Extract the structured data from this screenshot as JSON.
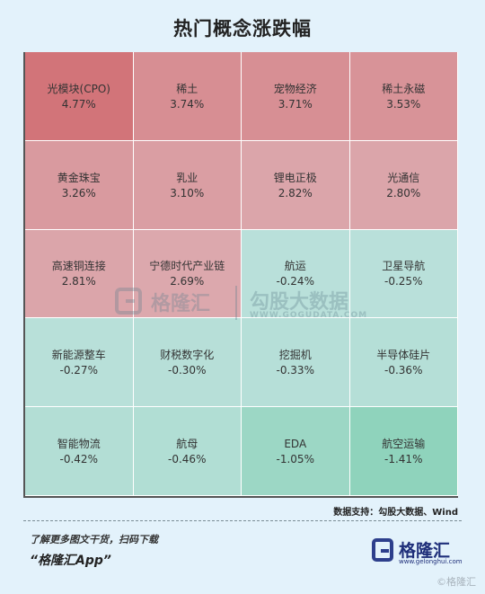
{
  "title": "热门概念涨跌幅",
  "chart_data": {
    "type": "heatmap",
    "title": "热门概念涨跌幅",
    "columns": 4,
    "rows": 5,
    "cells": [
      {
        "name": "光模块(CPO)",
        "value": 4.77,
        "label": "4.77%"
      },
      {
        "name": "稀土",
        "value": 3.74,
        "label": "3.74%"
      },
      {
        "name": "宠物经济",
        "value": 3.71,
        "label": "3.71%"
      },
      {
        "name": "稀土永磁",
        "value": 3.53,
        "label": "3.53%"
      },
      {
        "name": "黄金珠宝",
        "value": 3.26,
        "label": "3.26%"
      },
      {
        "name": "乳业",
        "value": 3.1,
        "label": "3.10%"
      },
      {
        "name": "锂电正极",
        "value": 2.82,
        "label": "2.82%"
      },
      {
        "name": "光通信",
        "value": 2.8,
        "label": "2.80%"
      },
      {
        "name": "高速铜连接",
        "value": 2.81,
        "label": "2.81%"
      },
      {
        "name": "宁德时代产业链",
        "value": 2.69,
        "label": "2.69%"
      },
      {
        "name": "航运",
        "value": -0.24,
        "label": "-0.24%"
      },
      {
        "name": "卫星导航",
        "value": -0.25,
        "label": "-0.25%"
      },
      {
        "name": "新能源整车",
        "value": -0.27,
        "label": "-0.27%"
      },
      {
        "name": "财税数字化",
        "value": -0.3,
        "label": "-0.30%"
      },
      {
        "name": "挖掘机",
        "value": -0.33,
        "label": "-0.33%"
      },
      {
        "name": "半导体硅片",
        "value": -0.36,
        "label": "-0.36%"
      },
      {
        "name": "智能物流",
        "value": -0.42,
        "label": "-0.42%"
      },
      {
        "name": "航母",
        "value": -0.46,
        "label": "-0.46%"
      },
      {
        "name": "EDA",
        "value": -1.05,
        "label": "-1.05%"
      },
      {
        "name": "航空运输",
        "value": -1.41,
        "label": "-1.41%"
      }
    ],
    "colors": {
      "positive_strong": "#d27479",
      "positive_weak": "#dca8ad",
      "negative_weak": "#b9e0da",
      "negative_strong": "#8fd3bc"
    }
  },
  "watermark": {
    "brand1": "格隆汇",
    "brand2": "勾股大数据",
    "url": "WWW.GOGUDATA.COM"
  },
  "source": "数据支持：勾股大数据、Wind",
  "footer": {
    "line1": "了解更多图文干货，扫码下载",
    "line2": "“格隆汇App”"
  },
  "logo": {
    "text": "格隆汇",
    "url": "www.gelonghui.com"
  },
  "corner_watermark": "©格隆汇"
}
